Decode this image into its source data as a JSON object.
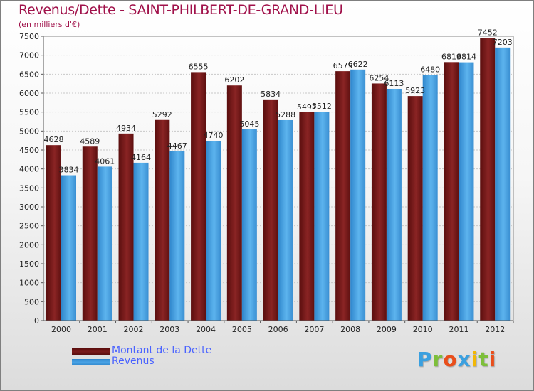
{
  "header": {
    "title": "Revenus/Dette - SAINT-PHILBERT-DE-GRAND-LIEU",
    "subtitle": "(en milliers d'€)"
  },
  "legend": {
    "items": [
      {
        "label": "Montant de la Dette",
        "color": "#7a1a1a"
      },
      {
        "label": "Revenus",
        "color": "#4aa3e6"
      }
    ]
  },
  "logo": {
    "text": "Proxiti",
    "letters": [
      {
        "ch": "P",
        "color": "#3aa0e0"
      },
      {
        "ch": "r",
        "color": "#7dbf3a"
      },
      {
        "ch": "o",
        "color": "#e94e1b"
      },
      {
        "ch": "x",
        "color": "#3aa0e0"
      },
      {
        "ch": "i",
        "color": "#f2b705"
      },
      {
        "ch": "t",
        "color": "#7dbf3a"
      },
      {
        "ch": "i",
        "color": "#e94e1b"
      }
    ]
  },
  "chart_data": {
    "type": "bar",
    "title": "Revenus/Dette - SAINT-PHILBERT-DE-GRAND-LIEU",
    "ylabel": "(en milliers d'€)",
    "xlabel": "",
    "categories": [
      "2000",
      "2001",
      "2002",
      "2003",
      "2004",
      "2005",
      "2006",
      "2007",
      "2008",
      "2009",
      "2010",
      "2011",
      "2012"
    ],
    "ylim": [
      0,
      7500
    ],
    "ytick_step": 500,
    "grid": true,
    "series": [
      {
        "name": "Montant de la Dette",
        "values": [
          4628,
          4589,
          4934,
          5292,
          6555,
          6202,
          5834,
          5497,
          6579,
          6254,
          5923,
          6819,
          7452
        ],
        "labels": [
          "4628",
          "4589",
          "4934",
          "5292",
          "6555",
          "6202",
          "5834",
          "5497",
          "6579",
          "6254",
          "5923",
          "6819",
          "7452"
        ]
      },
      {
        "name": "Revenus",
        "values": [
          3834,
          4061,
          4164,
          4467,
          4740,
          5045,
          5288,
          5512,
          6622,
          6113,
          6480,
          6814,
          7203
        ],
        "labels": [
          "3834",
          "4061",
          "4164",
          "4467",
          "4740",
          "5045",
          "5288",
          "5512",
          "6622",
          "6113",
          "6480",
          "6814",
          "7203"
        ]
      }
    ],
    "legend_position": "bottom-left"
  }
}
